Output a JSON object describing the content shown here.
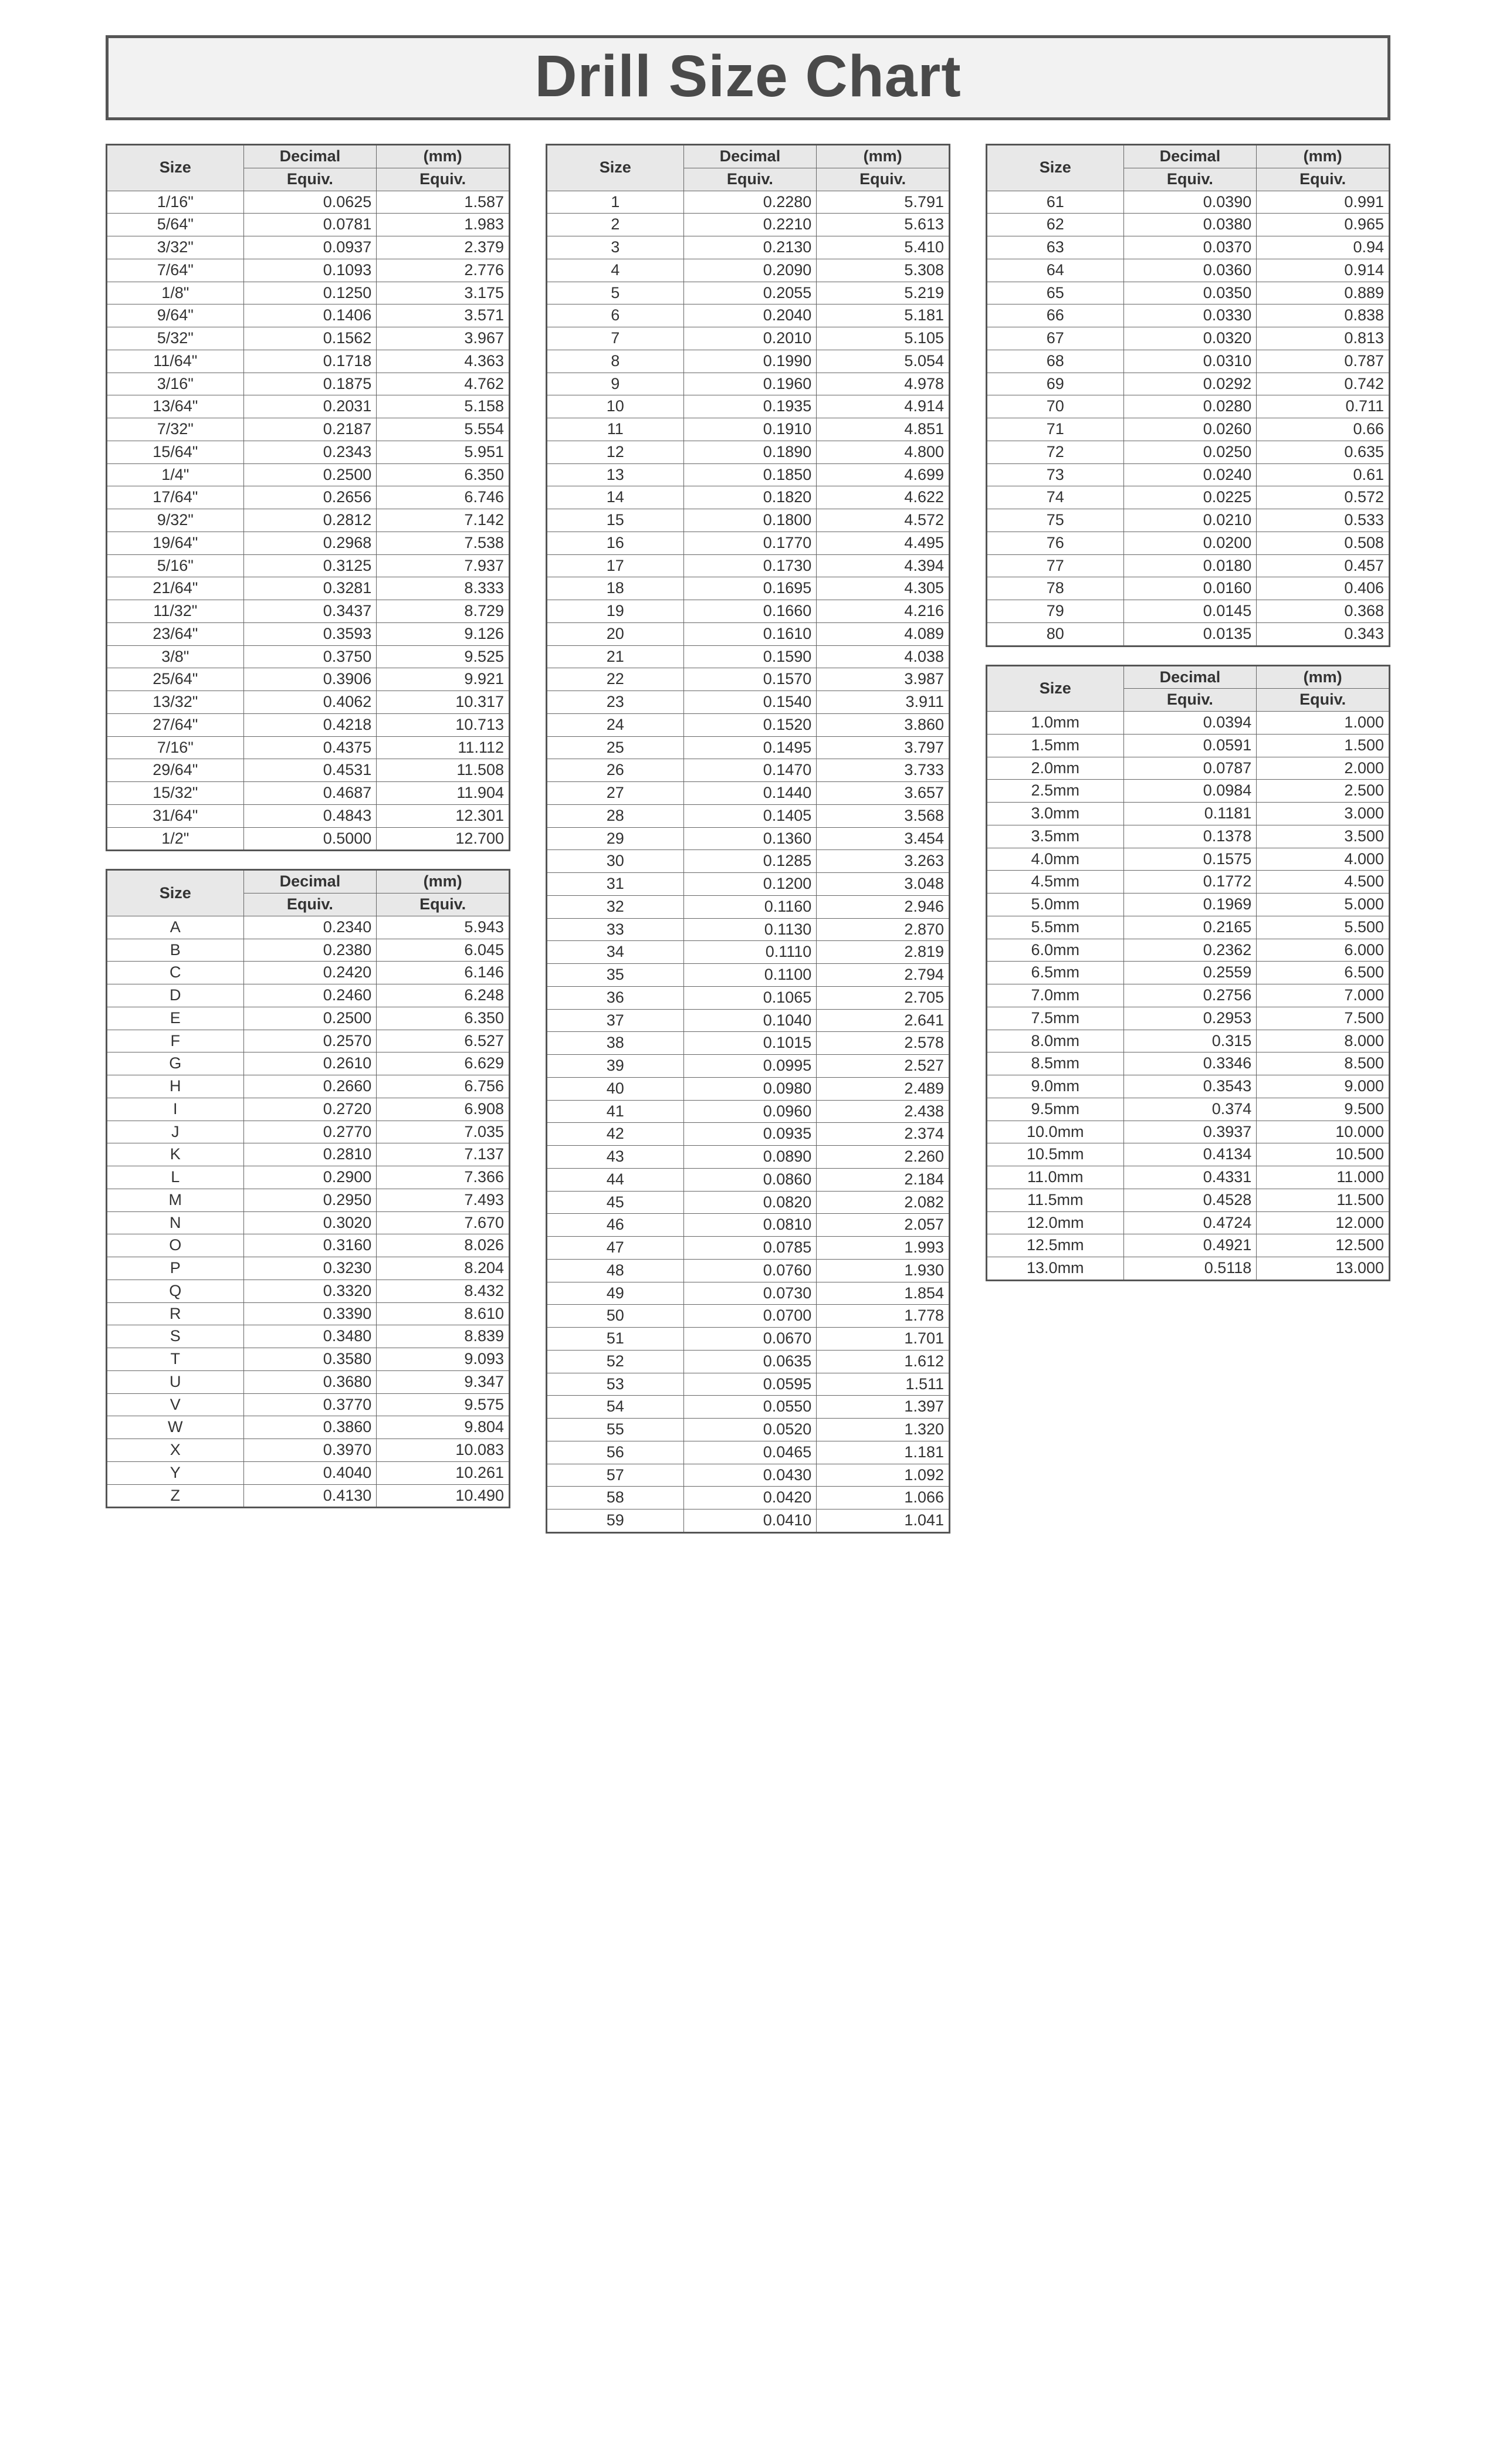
{
  "title": "Drill Size Chart",
  "headers": {
    "size": "Size",
    "decimal_l1": "Decimal",
    "decimal_l2": "Equiv.",
    "mm_l1": "(mm)",
    "mm_l2": "Equiv."
  },
  "tables": {
    "fractions": {
      "rows": [
        [
          "1/16\"",
          "0.0625",
          "1.587"
        ],
        [
          "5/64\"",
          "0.0781",
          "1.983"
        ],
        [
          "3/32\"",
          "0.0937",
          "2.379"
        ],
        [
          "7/64\"",
          "0.1093",
          "2.776"
        ],
        [
          "1/8\"",
          "0.1250",
          "3.175"
        ],
        [
          "9/64\"",
          "0.1406",
          "3.571"
        ],
        [
          "5/32\"",
          "0.1562",
          "3.967"
        ],
        [
          "11/64\"",
          "0.1718",
          "4.363"
        ],
        [
          "3/16\"",
          "0.1875",
          "4.762"
        ],
        [
          "13/64\"",
          "0.2031",
          "5.158"
        ],
        [
          "7/32\"",
          "0.2187",
          "5.554"
        ],
        [
          "15/64\"",
          "0.2343",
          "5.951"
        ],
        [
          "1/4\"",
          "0.2500",
          "6.350"
        ],
        [
          "17/64\"",
          "0.2656",
          "6.746"
        ],
        [
          "9/32\"",
          "0.2812",
          "7.142"
        ],
        [
          "19/64\"",
          "0.2968",
          "7.538"
        ],
        [
          "5/16\"",
          "0.3125",
          "7.937"
        ],
        [
          "21/64\"",
          "0.3281",
          "8.333"
        ],
        [
          "11/32\"",
          "0.3437",
          "8.729"
        ],
        [
          "23/64\"",
          "0.3593",
          "9.126"
        ],
        [
          "3/8\"",
          "0.3750",
          "9.525"
        ],
        [
          "25/64\"",
          "0.3906",
          "9.921"
        ],
        [
          "13/32\"",
          "0.4062",
          "10.317"
        ],
        [
          "27/64\"",
          "0.4218",
          "10.713"
        ],
        [
          "7/16\"",
          "0.4375",
          "11.112"
        ],
        [
          "29/64\"",
          "0.4531",
          "11.508"
        ],
        [
          "15/32\"",
          "0.4687",
          "11.904"
        ],
        [
          "31/64\"",
          "0.4843",
          "12.301"
        ],
        [
          "1/2\"",
          "0.5000",
          "12.700"
        ]
      ]
    },
    "letters": {
      "rows": [
        [
          "A",
          "0.2340",
          "5.943"
        ],
        [
          "B",
          "0.2380",
          "6.045"
        ],
        [
          "C",
          "0.2420",
          "6.146"
        ],
        [
          "D",
          "0.2460",
          "6.248"
        ],
        [
          "E",
          "0.2500",
          "6.350"
        ],
        [
          "F",
          "0.2570",
          "6.527"
        ],
        [
          "G",
          "0.2610",
          "6.629"
        ],
        [
          "H",
          "0.2660",
          "6.756"
        ],
        [
          "I",
          "0.2720",
          "6.908"
        ],
        [
          "J",
          "0.2770",
          "7.035"
        ],
        [
          "K",
          "0.2810",
          "7.137"
        ],
        [
          "L",
          "0.2900",
          "7.366"
        ],
        [
          "M",
          "0.2950",
          "7.493"
        ],
        [
          "N",
          "0.3020",
          "7.670"
        ],
        [
          "O",
          "0.3160",
          "8.026"
        ],
        [
          "P",
          "0.3230",
          "8.204"
        ],
        [
          "Q",
          "0.3320",
          "8.432"
        ],
        [
          "R",
          "0.3390",
          "8.610"
        ],
        [
          "S",
          "0.3480",
          "8.839"
        ],
        [
          "T",
          "0.3580",
          "9.093"
        ],
        [
          "U",
          "0.3680",
          "9.347"
        ],
        [
          "V",
          "0.3770",
          "9.575"
        ],
        [
          "W",
          "0.3860",
          "9.804"
        ],
        [
          "X",
          "0.3970",
          "10.083"
        ],
        [
          "Y",
          "0.4040",
          "10.261"
        ],
        [
          "Z",
          "0.4130",
          "10.490"
        ]
      ]
    },
    "numbers": {
      "rows": [
        [
          "1",
          "0.2280",
          "5.791"
        ],
        [
          "2",
          "0.2210",
          "5.613"
        ],
        [
          "3",
          "0.2130",
          "5.410"
        ],
        [
          "4",
          "0.2090",
          "5.308"
        ],
        [
          "5",
          "0.2055",
          "5.219"
        ],
        [
          "6",
          "0.2040",
          "5.181"
        ],
        [
          "7",
          "0.2010",
          "5.105"
        ],
        [
          "8",
          "0.1990",
          "5.054"
        ],
        [
          "9",
          "0.1960",
          "4.978"
        ],
        [
          "10",
          "0.1935",
          "4.914"
        ],
        [
          "11",
          "0.1910",
          "4.851"
        ],
        [
          "12",
          "0.1890",
          "4.800"
        ],
        [
          "13",
          "0.1850",
          "4.699"
        ],
        [
          "14",
          "0.1820",
          "4.622"
        ],
        [
          "15",
          "0.1800",
          "4.572"
        ],
        [
          "16",
          "0.1770",
          "4.495"
        ],
        [
          "17",
          "0.1730",
          "4.394"
        ],
        [
          "18",
          "0.1695",
          "4.305"
        ],
        [
          "19",
          "0.1660",
          "4.216"
        ],
        [
          "20",
          "0.1610",
          "4.089"
        ],
        [
          "21",
          "0.1590",
          "4.038"
        ],
        [
          "22",
          "0.1570",
          "3.987"
        ],
        [
          "23",
          "0.1540",
          "3.911"
        ],
        [
          "24",
          "0.1520",
          "3.860"
        ],
        [
          "25",
          "0.1495",
          "3.797"
        ],
        [
          "26",
          "0.1470",
          "3.733"
        ],
        [
          "27",
          "0.1440",
          "3.657"
        ],
        [
          "28",
          "0.1405",
          "3.568"
        ],
        [
          "29",
          "0.1360",
          "3.454"
        ],
        [
          "30",
          "0.1285",
          "3.263"
        ],
        [
          "31",
          "0.1200",
          "3.048"
        ],
        [
          "32",
          "0.1160",
          "2.946"
        ],
        [
          "33",
          "0.1130",
          "2.870"
        ],
        [
          "34",
          "0.1110",
          "2.819"
        ],
        [
          "35",
          "0.1100",
          "2.794"
        ],
        [
          "36",
          "0.1065",
          "2.705"
        ],
        [
          "37",
          "0.1040",
          "2.641"
        ],
        [
          "38",
          "0.1015",
          "2.578"
        ],
        [
          "39",
          "0.0995",
          "2.527"
        ],
        [
          "40",
          "0.0980",
          "2.489"
        ],
        [
          "41",
          "0.0960",
          "2.438"
        ],
        [
          "42",
          "0.0935",
          "2.374"
        ],
        [
          "43",
          "0.0890",
          "2.260"
        ],
        [
          "44",
          "0.0860",
          "2.184"
        ],
        [
          "45",
          "0.0820",
          "2.082"
        ],
        [
          "46",
          "0.0810",
          "2.057"
        ],
        [
          "47",
          "0.0785",
          "1.993"
        ],
        [
          "48",
          "0.0760",
          "1.930"
        ],
        [
          "49",
          "0.0730",
          "1.854"
        ],
        [
          "50",
          "0.0700",
          "1.778"
        ],
        [
          "51",
          "0.0670",
          "1.701"
        ],
        [
          "52",
          "0.0635",
          "1.612"
        ],
        [
          "53",
          "0.0595",
          "1.511"
        ],
        [
          "54",
          "0.0550",
          "1.397"
        ],
        [
          "55",
          "0.0520",
          "1.320"
        ],
        [
          "56",
          "0.0465",
          "1.181"
        ],
        [
          "57",
          "0.0430",
          "1.092"
        ],
        [
          "58",
          "0.0420",
          "1.066"
        ],
        [
          "59",
          "0.0410",
          "1.041"
        ]
      ]
    },
    "numbers_high": {
      "rows": [
        [
          "61",
          "0.0390",
          "0.991"
        ],
        [
          "62",
          "0.0380",
          "0.965"
        ],
        [
          "63",
          "0.0370",
          "0.94"
        ],
        [
          "64",
          "0.0360",
          "0.914"
        ],
        [
          "65",
          "0.0350",
          "0.889"
        ],
        [
          "66",
          "0.0330",
          "0.838"
        ],
        [
          "67",
          "0.0320",
          "0.813"
        ],
        [
          "68",
          "0.0310",
          "0.787"
        ],
        [
          "69",
          "0.0292",
          "0.742"
        ],
        [
          "70",
          "0.0280",
          "0.711"
        ],
        [
          "71",
          "0.0260",
          "0.66"
        ],
        [
          "72",
          "0.0250",
          "0.635"
        ],
        [
          "73",
          "0.0240",
          "0.61"
        ],
        [
          "74",
          "0.0225",
          "0.572"
        ],
        [
          "75",
          "0.0210",
          "0.533"
        ],
        [
          "76",
          "0.0200",
          "0.508"
        ],
        [
          "77",
          "0.0180",
          "0.457"
        ],
        [
          "78",
          "0.0160",
          "0.406"
        ],
        [
          "79",
          "0.0145",
          "0.368"
        ],
        [
          "80",
          "0.0135",
          "0.343"
        ]
      ]
    },
    "metric": {
      "rows": [
        [
          "1.0mm",
          "0.0394",
          "1.000"
        ],
        [
          "1.5mm",
          "0.0591",
          "1.500"
        ],
        [
          "2.0mm",
          "0.0787",
          "2.000"
        ],
        [
          "2.5mm",
          "0.0984",
          "2.500"
        ],
        [
          "3.0mm",
          "0.1181",
          "3.000"
        ],
        [
          "3.5mm",
          "0.1378",
          "3.500"
        ],
        [
          "4.0mm",
          "0.1575",
          "4.000"
        ],
        [
          "4.5mm",
          "0.1772",
          "4.500"
        ],
        [
          "5.0mm",
          "0.1969",
          "5.000"
        ],
        [
          "5.5mm",
          "0.2165",
          "5.500"
        ],
        [
          "6.0mm",
          "0.2362",
          "6.000"
        ],
        [
          "6.5mm",
          "0.2559",
          "6.500"
        ],
        [
          "7.0mm",
          "0.2756",
          "7.000"
        ],
        [
          "7.5mm",
          "0.2953",
          "7.500"
        ],
        [
          "8.0mm",
          "0.315",
          "8.000"
        ],
        [
          "8.5mm",
          "0.3346",
          "8.500"
        ],
        [
          "9.0mm",
          "0.3543",
          "9.000"
        ],
        [
          "9.5mm",
          "0.374",
          "9.500"
        ],
        [
          "10.0mm",
          "0.3937",
          "10.000"
        ],
        [
          "10.5mm",
          "0.4134",
          "10.500"
        ],
        [
          "11.0mm",
          "0.4331",
          "11.000"
        ],
        [
          "11.5mm",
          "0.4528",
          "11.500"
        ],
        [
          "12.0mm",
          "0.4724",
          "12.000"
        ],
        [
          "12.5mm",
          "0.4921",
          "12.500"
        ],
        [
          "13.0mm",
          "0.5118",
          "13.000"
        ]
      ]
    }
  },
  "style": {
    "title_fontsize": 100,
    "table_fontsize": 27,
    "border_color": "#555555",
    "header_bg": "#e8e8e8",
    "title_bg": "#f2f2f2",
    "text_color": "#333333",
    "column_widths": [
      "34%",
      "33%",
      "33%"
    ]
  }
}
